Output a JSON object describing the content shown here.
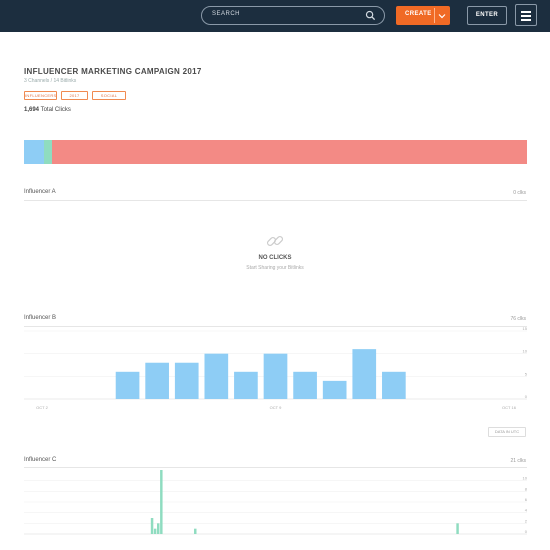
{
  "topbar": {
    "search_placeholder": "SEARCH",
    "create_label": "CREATE",
    "enter_label": "ENTER"
  },
  "campaign": {
    "title": "INFLUENCER MARKETING CAMPAIGN 2017",
    "subtitle": "3 Channels  /  14 Bitlinks",
    "tags": [
      "INFLUENCERS",
      "2017",
      "SOCIAL"
    ],
    "total_clicks": "1,694",
    "total_label": "Total Clicks",
    "breakdown": [
      {
        "name": "Influencer B",
        "share": 0.04,
        "color": "#8ecdf5"
      },
      {
        "name": "Influencer C",
        "share": 0.015,
        "color": "#8fdcc0"
      },
      {
        "name": "Other",
        "share": 0.945,
        "color": "#f38a85"
      }
    ]
  },
  "sections": {
    "a": {
      "title": "Influencer A",
      "count": "0 clks",
      "empty_title": "NO CLICKS",
      "empty_sub": "Start Sharing your Bitlinks"
    },
    "b": {
      "title": "Influencer B",
      "count": "76 clks"
    },
    "c": {
      "title": "Influencer C",
      "count": "21 clks"
    }
  },
  "data_button": "DATA IN UTC",
  "chart_data": [
    {
      "type": "bar",
      "title": "Influencer B",
      "values": [
        0,
        0,
        0,
        6,
        8,
        8,
        10,
        6,
        10,
        6,
        4,
        11,
        6,
        0,
        0,
        0,
        0
      ],
      "x_tick_labels": [
        "OCT 2",
        "OCT 9",
        "OCT 16"
      ],
      "y_ticks": [
        0,
        5,
        10,
        15
      ],
      "ylim": [
        0,
        15
      ],
      "color": "#8ecdf5"
    },
    {
      "type": "bar",
      "title": "Influencer C",
      "values": [
        0,
        0,
        0,
        0,
        0,
        0,
        0,
        0,
        0,
        0,
        0,
        0,
        0,
        0,
        0,
        0,
        0,
        0,
        0,
        0,
        0,
        0,
        0,
        0,
        0,
        0,
        0,
        0,
        0,
        0,
        0,
        0,
        0,
        0,
        0,
        0,
        0,
        0,
        0,
        0,
        0,
        3,
        1,
        2,
        12,
        0,
        0,
        0,
        0,
        0,
        0,
        0,
        0,
        0,
        0,
        1,
        0,
        0,
        0,
        0,
        0,
        0,
        0,
        0,
        0,
        0,
        0,
        0,
        0,
        0,
        0,
        0,
        0,
        0,
        0,
        0,
        0,
        0,
        0,
        0,
        0,
        0,
        0,
        0,
        0,
        0,
        0,
        0,
        0,
        0,
        0,
        0,
        0,
        0,
        0,
        0,
        0,
        0,
        0,
        0,
        0,
        0,
        0,
        0,
        0,
        0,
        0,
        0,
        0,
        0,
        0,
        0,
        0,
        0,
        0,
        0,
        0,
        0,
        0,
        0,
        0,
        0,
        0,
        0,
        0,
        0,
        0,
        0,
        0,
        0,
        0,
        0,
        0,
        0,
        0,
        0,
        0,
        0,
        0,
        0,
        2,
        0,
        0,
        0,
        0,
        0,
        0,
        0,
        0,
        0,
        0,
        0,
        0,
        0,
        0,
        0,
        0,
        0,
        0,
        0,
        0,
        0,
        0
      ],
      "y_ticks": [
        0,
        2,
        4,
        6,
        8,
        10
      ],
      "ylim": [
        0,
        12
      ],
      "color": "#8fdcc0"
    }
  ]
}
